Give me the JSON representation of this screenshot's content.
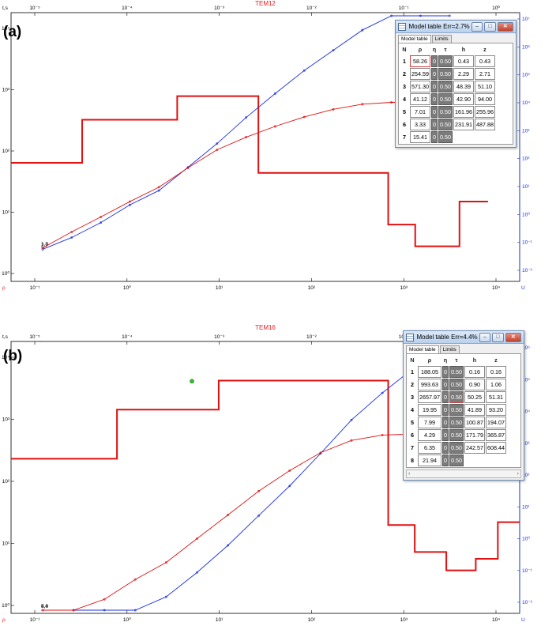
{
  "colors": {
    "rho": "#e01010",
    "eta_curve": "#1a2fe0",
    "model": "#e01010",
    "point": "#2fbf2f",
    "axis_left": "#000000",
    "axis_right": "#1a2fe0"
  },
  "chart_data": [
    {
      "type": "line",
      "panel_label": "(a)",
      "title": "TEM12",
      "ylabel": "t,s",
      "xlabel": "ρ",
      "right_label": "U",
      "top_ticks": [
        "10⁻⁵",
        "10⁻⁴",
        "10⁻³",
        "10⁻²",
        "10⁻¹",
        "10⁰"
      ],
      "bottom_ticks": [
        "10⁻¹",
        "10⁰",
        "10¹",
        "10²",
        "10³",
        "10⁴"
      ],
      "left_ticks": [
        "10⁴",
        "10³",
        "10²",
        "10¹",
        "10⁰"
      ],
      "right_ticks": [
        "10⁷",
        "10⁶",
        "10⁵",
        "10⁴",
        "10³",
        "10²",
        "10¹",
        "10⁰",
        "10⁻¹",
        "10⁻²"
      ],
      "log_scale": true,
      "curve_tags": [
        "2,7",
        "1,8"
      ],
      "series": [
        {
          "name": "",
          "color": "#1a2fe0",
          "x": [
            0.12,
            0.2,
            0.35,
            0.6,
            1,
            2,
            4,
            8,
            15,
            30,
            60,
            100,
            150,
            200,
            250
          ],
          "y": [
            0.0012,
            0.0018,
            0.003,
            0.0055,
            0.009,
            0.02,
            0.045,
            0.11,
            0.25,
            0.55,
            1.1,
            2.2,
            3.8,
            6,
            9
          ]
        },
        {
          "name": "",
          "color": "#e01010",
          "x": [
            0.12,
            0.2,
            0.35,
            0.6,
            1,
            2,
            4,
            8,
            15,
            30,
            60,
            100,
            150,
            200,
            250
          ],
          "y": [
            0.0045,
            0.0078,
            0.013,
            0.022,
            0.036,
            0.07,
            0.13,
            0.2,
            0.29,
            0.4,
            0.52,
            0.62,
            0.66,
            0.66,
            0.65
          ]
        }
      ],
      "model": {
        "resistivity": [
          58.26,
          254.59,
          571.3,
          41.12,
          7.01,
          3.33,
          15.41
        ],
        "depth_top_s": [
          1e-05,
          5e-05,
          0.00043,
          0.0027,
          0.051,
          0.094,
          0.256,
          0.488
        ]
      },
      "model_point": {
        "x": 300,
        "y": 0.26
      },
      "window": {
        "title": "Model table Err=2.7%",
        "tabs": [
          "Model table",
          "Limits"
        ],
        "headers": [
          "N",
          "ρ",
          "η",
          "τ",
          "h",
          "z"
        ],
        "rows": [
          [
            "1",
            "58.26",
            "0",
            "0.50",
            "0.43",
            "0.43"
          ],
          [
            "2",
            "254.59",
            "0",
            "0.50",
            "2.29",
            "2.71"
          ],
          [
            "3",
            "571.30",
            "0",
            "0.50",
            "48.39",
            "51.10"
          ],
          [
            "4",
            "41.12",
            "0",
            "0.50",
            "42.90",
            "94.00"
          ],
          [
            "5",
            "7.01",
            "0",
            "0.50",
            "161.96",
            "255.96"
          ],
          [
            "6",
            "3.33",
            "0",
            "0.50",
            "231.91",
            "487.88"
          ],
          [
            "7",
            "15.41",
            "0",
            "0.50",
            "",
            ""
          ]
        ]
      }
    },
    {
      "type": "line",
      "panel_label": "(b)",
      "title": "TEM16",
      "ylabel": "t,s",
      "xlabel": "ρ",
      "right_label": "U",
      "top_ticks": [
        "10⁻⁵",
        "10⁻⁴",
        "10⁻³",
        "10⁻²",
        "10⁻¹",
        "10⁰"
      ],
      "bottom_ticks": [
        "10⁻¹",
        "10⁰",
        "10¹",
        "10²",
        "10³",
        "10⁴"
      ],
      "left_ticks": [
        "10⁴",
        "10³",
        "10²",
        "10¹",
        "10⁰"
      ],
      "right_ticks": [
        "10⁶",
        "10⁵",
        "10⁴",
        "10³",
        "10²",
        "10¹",
        "10⁰",
        "10⁻¹",
        "10⁻²"
      ],
      "log_scale": true,
      "curve_tags": [
        "4,4",
        "5,0"
      ],
      "series": [
        {
          "name": "",
          "color": "#1a2fe0",
          "x": [
            0.12,
            0.2,
            0.35,
            0.6,
            1,
            2,
            4,
            8,
            15,
            30,
            60,
            100,
            150,
            200,
            300
          ],
          "y": [
            0.00012,
            0.00016,
            0.00025,
            0.00042,
            0.0007,
            0.0016,
            0.004,
            0.011,
            0.03,
            0.09,
            0.28,
            0.7,
            1.6,
            3,
            7
          ]
        },
        {
          "name": "",
          "color": "#e01010",
          "x": [
            0.12,
            0.2,
            0.35,
            0.6,
            1,
            2,
            4,
            8,
            15,
            30,
            60,
            100,
            150,
            200,
            300
          ],
          "y": [
            0.0006,
            0.0012,
            0.0023,
            0.0045,
            0.008,
            0.018,
            0.04,
            0.09,
            0.18,
            0.33,
            0.5,
            0.6,
            0.62,
            0.6,
            0.55
          ]
        }
      ],
      "model": {
        "resistivity": [
          188.05,
          993.63,
          2657.97,
          19.95,
          7.99,
          4.29,
          6.35,
          21.94
        ],
        "depth_top_s": [
          1e-05,
          0.00011,
          0.0011,
          0.051,
          0.093,
          0.19,
          0.37,
          0.61
        ]
      },
      "model_point": {
        "x": 2600,
        "y": 0.0006
      },
      "window": {
        "title": "Model table Err=4.4%",
        "tabs": [
          "Model table",
          "Limits"
        ],
        "headers": [
          "N",
          "ρ",
          "η",
          "τ",
          "h",
          "z"
        ],
        "rows": [
          [
            "1",
            "188.05",
            "0",
            "0.50",
            "0.16",
            "0.16"
          ],
          [
            "2",
            "993.63",
            "0",
            "0.50",
            "0.90",
            "1.06"
          ],
          [
            "3",
            "2657.97",
            "0",
            "0.50",
            "50.25",
            "51.31"
          ],
          [
            "4",
            "19.95",
            "0",
            "0.50",
            "41.89",
            "93.20"
          ],
          [
            "5",
            "7.99",
            "0",
            "0.50",
            "100.87",
            "194.07"
          ],
          [
            "6",
            "4.29",
            "0",
            "0.50",
            "171.79",
            "365.87"
          ],
          [
            "7",
            "6.35",
            "0",
            "0.50",
            "242.57",
            "608.44"
          ],
          [
            "8",
            "21.94",
            "0",
            "0.50",
            "",
            ""
          ]
        ]
      }
    }
  ]
}
